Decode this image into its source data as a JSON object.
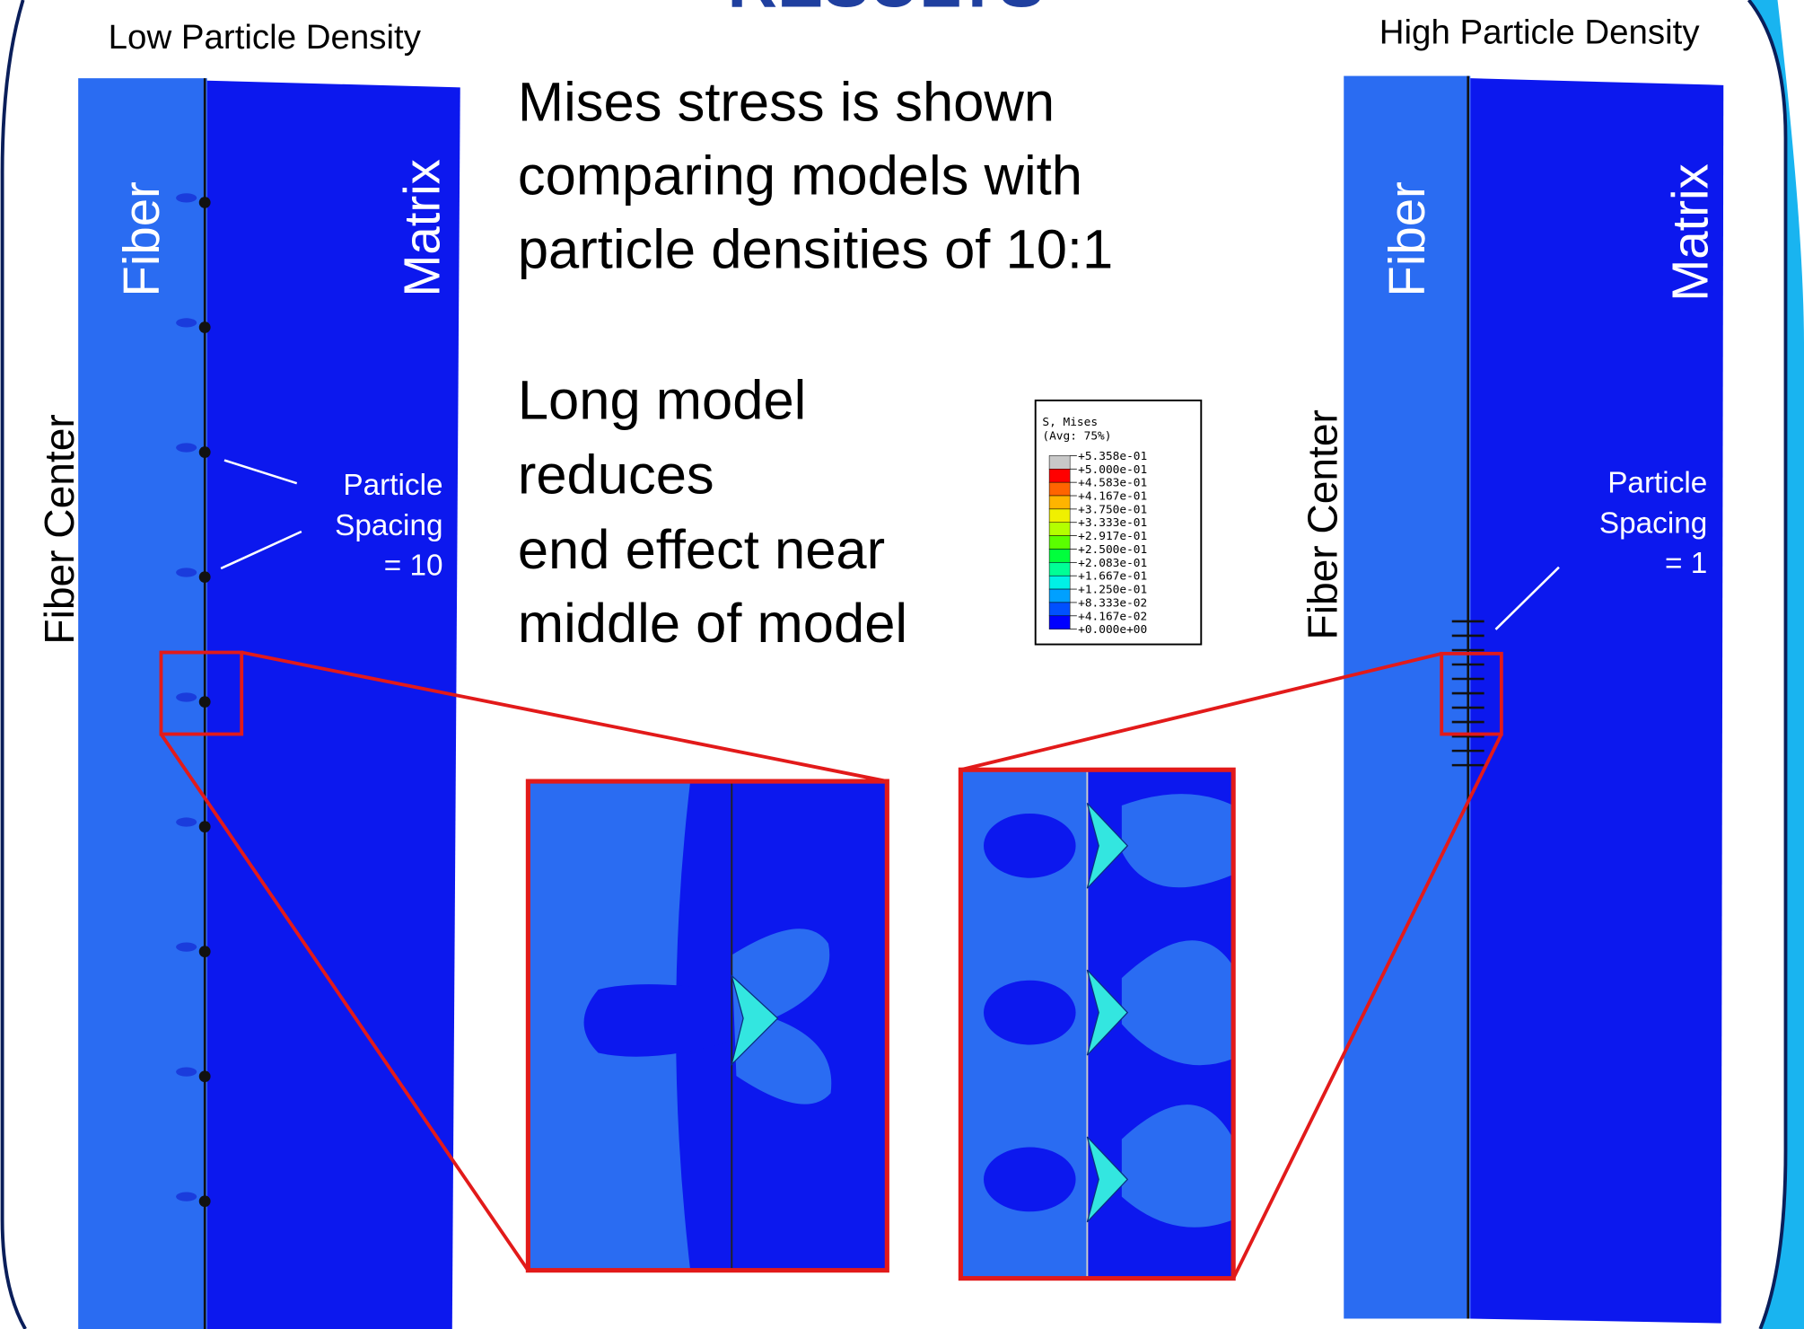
{
  "header": {
    "title": "RESULTS"
  },
  "panels": {
    "left": {
      "label": "Low Particle Density",
      "fiber": "Fiber",
      "matrix": "Matrix",
      "axis": "Fiber Center",
      "spacing": [
        "Particle",
        "Spacing",
        "= 10"
      ]
    },
    "right": {
      "label": "High Particle Density",
      "fiber": "Fiber",
      "matrix": "Matrix",
      "axis": "Fiber Center",
      "spacing": [
        "Particle",
        "Spacing",
        "= 1"
      ]
    }
  },
  "body": {
    "para1": [
      "Mises stress is shown",
      "comparing models with",
      "particle densities of 10:1"
    ],
    "para2": [
      "Long model",
      "reduces",
      "end effect near",
      "middle of model"
    ]
  },
  "legend": {
    "title": [
      "S, Mises",
      "(Avg: 75%)"
    ],
    "labels": [
      "+5.358e-01",
      "+5.000e-01",
      "+4.583e-01",
      "+4.167e-01",
      "+3.750e-01",
      "+3.333e-01",
      "+2.917e-01",
      "+2.500e-01",
      "+2.083e-01",
      "+1.667e-01",
      "+1.250e-01",
      "+8.333e-02",
      "+4.167e-02",
      "+0.000e+00"
    ]
  }
}
